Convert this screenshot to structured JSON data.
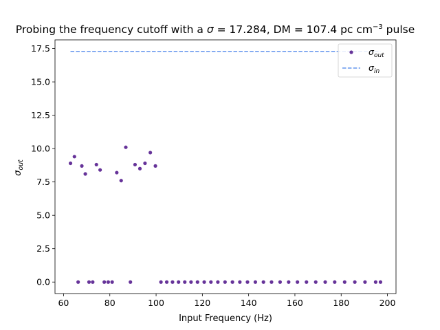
{
  "chart_data": {
    "type": "scatter",
    "title_parts": {
      "prefix": "Probing the frequency cutoff with a ",
      "sigma_symbol": "σ",
      "sigma_value_text": " = 17.284, DM = 107.4 pc cm",
      "exponent": "−3",
      "suffix": " pulse"
    },
    "xlabel": "Input Frequency (Hz)",
    "ylabel_base": "σ",
    "ylabel_sub": "out",
    "xlim": [
      56.3,
      203.7
    ],
    "ylim": [
      -0.864,
      18.148
    ],
    "x_ticks": [
      60,
      80,
      100,
      120,
      140,
      160,
      180,
      200
    ],
    "x_tick_labels": [
      "60",
      "80",
      "100",
      "120",
      "140",
      "160",
      "180",
      "200"
    ],
    "y_ticks": [
      0,
      2.5,
      5,
      7.5,
      10,
      12.5,
      15,
      17.5
    ],
    "y_tick_labels": [
      "0.0",
      "2.5",
      "5.0",
      "7.5",
      "10.0",
      "12.5",
      "15.0",
      "17.5"
    ],
    "legend_position": "top-right",
    "series": [
      {
        "name_base": "σ",
        "name_sub": "out",
        "kind": "points",
        "color": "#663399",
        "x": [
          63.0,
          64.7,
          66.3,
          67.9,
          69.4,
          71.0,
          72.6,
          74.2,
          75.8,
          77.6,
          79.3,
          81.0,
          83.0,
          84.9,
          86.9,
          88.9,
          90.9,
          93.0,
          95.2,
          97.5,
          99.7,
          102.1,
          104.6,
          107.1,
          109.7,
          112.4,
          115.1,
          117.9,
          120.8,
          123.7,
          126.7,
          129.8,
          133.0,
          136.2,
          139.5,
          142.9,
          146.4,
          149.9,
          153.6,
          157.3,
          161.1,
          165.0,
          169.0,
          173.1,
          177.2,
          181.5,
          185.9,
          190.3,
          194.9,
          197.0
        ],
        "y": [
          8.9,
          9.4,
          0.0,
          8.7,
          8.1,
          0.0,
          0.0,
          8.8,
          8.4,
          0.0,
          0.0,
          0.0,
          8.2,
          7.6,
          10.1,
          0.0,
          8.8,
          8.5,
          8.9,
          9.7,
          8.7,
          0.0,
          0.0,
          0.0,
          0.0,
          0.0,
          0.0,
          0.0,
          0.0,
          0.0,
          0.0,
          0.0,
          0.0,
          0.0,
          0.0,
          0.0,
          0.0,
          0.0,
          0.0,
          0.0,
          0.0,
          0.0,
          0.0,
          0.0,
          0.0,
          0.0,
          0.0,
          0.0,
          0.0,
          0.0
        ]
      },
      {
        "name_base": "σ",
        "name_sub": "in",
        "kind": "dashed-line",
        "color": "#6495ed",
        "x": [
          63.0,
          197.0
        ],
        "y": [
          17.284,
          17.284
        ]
      }
    ]
  }
}
